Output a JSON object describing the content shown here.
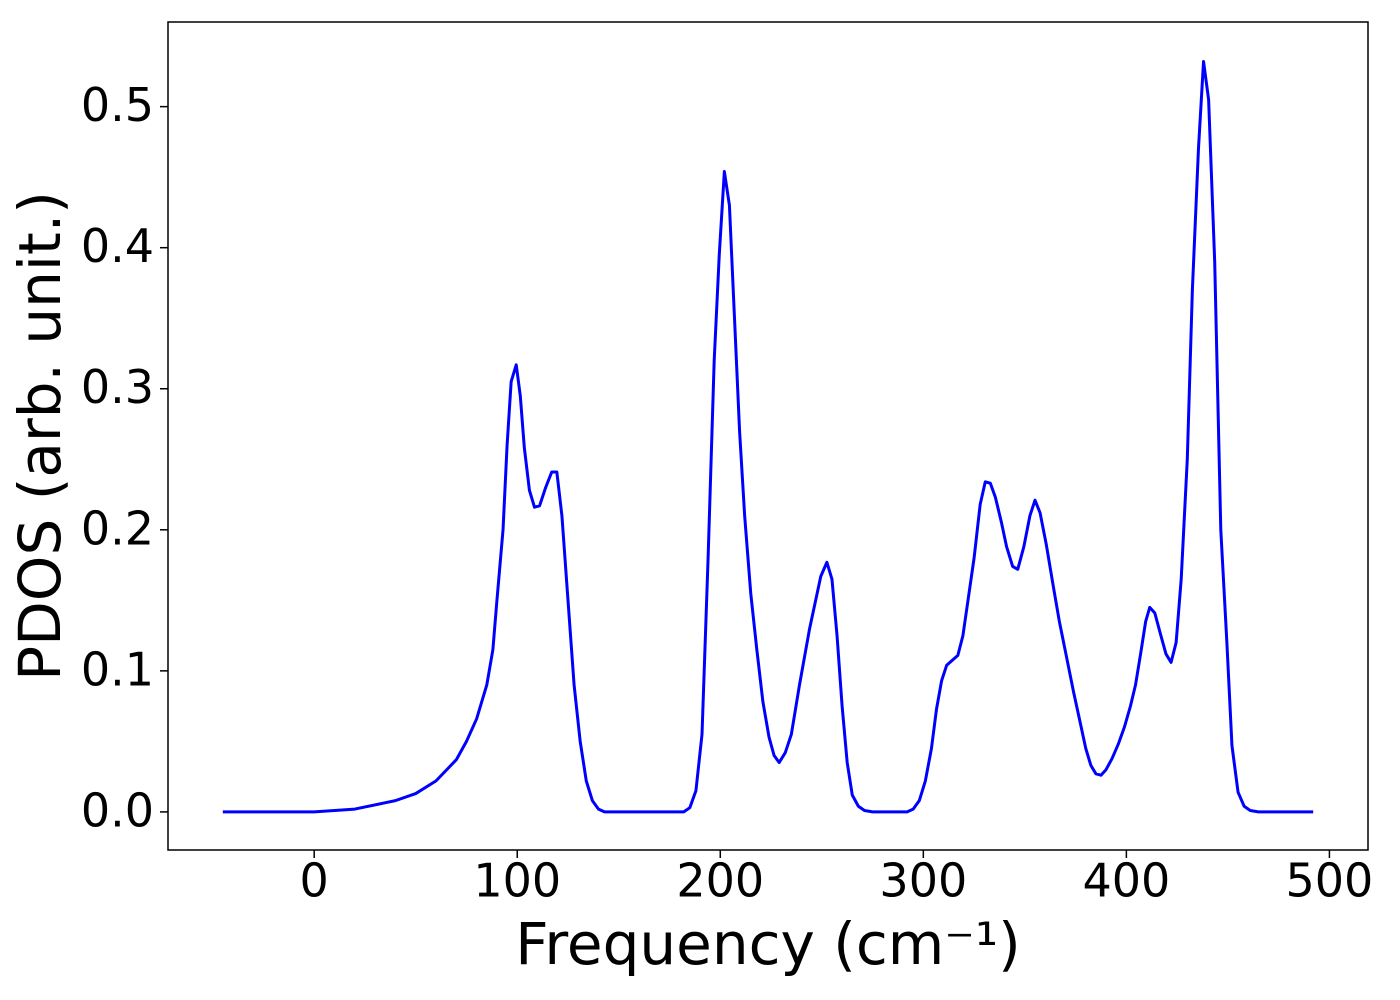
{
  "chart_data": {
    "type": "line",
    "xlabel": "Frequency (cm⁻¹)",
    "ylabel": "PDOS (arb. unit.)",
    "xlim": [
      -72,
      519
    ],
    "ylim": [
      -0.027,
      0.56
    ],
    "xticks": [
      0,
      100,
      200,
      300,
      400,
      500
    ],
    "yticks": [
      {
        "value": 0,
        "label": "0.0"
      },
      0.1,
      0.2,
      0.3,
      0.4,
      0.5
    ],
    "grid": false,
    "series": [
      {
        "color": "#0000ff",
        "x": [
          -45,
          0,
          20,
          40,
          50,
          60,
          70,
          75,
          80,
          85,
          88,
          90,
          93,
          95,
          97,
          99.5,
          101.5,
          103.5,
          106,
          108.5,
          111,
          114,
          117,
          119.5,
          122,
          125,
          128,
          131,
          134,
          137,
          140,
          143,
          182,
          185,
          188,
          191,
          194,
          197,
          199.5,
          202,
          204.5,
          207,
          209.5,
          212,
          215,
          218,
          221,
          224,
          226.5,
          229,
          232,
          235,
          239,
          244,
          249.5,
          252.5,
          255,
          257.5,
          260,
          262.5,
          265,
          268,
          271,
          275,
          292,
          295,
          298,
          301,
          304,
          306.5,
          309,
          311.5,
          317,
          319.5,
          322,
          325,
          328,
          330.5,
          333,
          335.5,
          338.5,
          341,
          344,
          346.5,
          349.5,
          352.5,
          355,
          357.5,
          360.5,
          364,
          367,
          370.5,
          374,
          377,
          380,
          382.5,
          385,
          387.5,
          390,
          393,
          396,
          399,
          402,
          404.5,
          407,
          409.5,
          411.5,
          414,
          417,
          419.5,
          422,
          424.5,
          427,
          430,
          432.5,
          435.5,
          438,
          440.5,
          443.5,
          446.5,
          449.5,
          452,
          455,
          458,
          461,
          465,
          492
        ],
        "values": [
          0,
          0,
          0.002,
          0.008,
          0.013,
          0.022,
          0.037,
          0.05,
          0.066,
          0.09,
          0.115,
          0.15,
          0.2,
          0.26,
          0.305,
          0.317,
          0.295,
          0.258,
          0.228,
          0.216,
          0.217,
          0.23,
          0.241,
          0.241,
          0.21,
          0.15,
          0.09,
          0.05,
          0.022,
          0.008,
          0.002,
          0,
          0,
          0.003,
          0.015,
          0.055,
          0.18,
          0.32,
          0.395,
          0.454,
          0.43,
          0.35,
          0.27,
          0.21,
          0.155,
          0.115,
          0.078,
          0.053,
          0.04,
          0.035,
          0.042,
          0.055,
          0.09,
          0.13,
          0.167,
          0.177,
          0.165,
          0.125,
          0.075,
          0.035,
          0.012,
          0.004,
          0.001,
          0,
          0,
          0.002,
          0.008,
          0.022,
          0.045,
          0.073,
          0.093,
          0.104,
          0.111,
          0.125,
          0.15,
          0.18,
          0.218,
          0.234,
          0.233,
          0.223,
          0.205,
          0.188,
          0.174,
          0.172,
          0.188,
          0.21,
          0.221,
          0.212,
          0.19,
          0.16,
          0.135,
          0.11,
          0.085,
          0.065,
          0.045,
          0.033,
          0.027,
          0.026,
          0.03,
          0.038,
          0.048,
          0.06,
          0.075,
          0.09,
          0.112,
          0.135,
          0.145,
          0.141,
          0.125,
          0.112,
          0.106,
          0.12,
          0.165,
          0.25,
          0.37,
          0.47,
          0.532,
          0.505,
          0.39,
          0.2,
          0.12,
          0.047,
          0.014,
          0.004,
          0.001,
          0,
          0
        ]
      }
    ]
  }
}
